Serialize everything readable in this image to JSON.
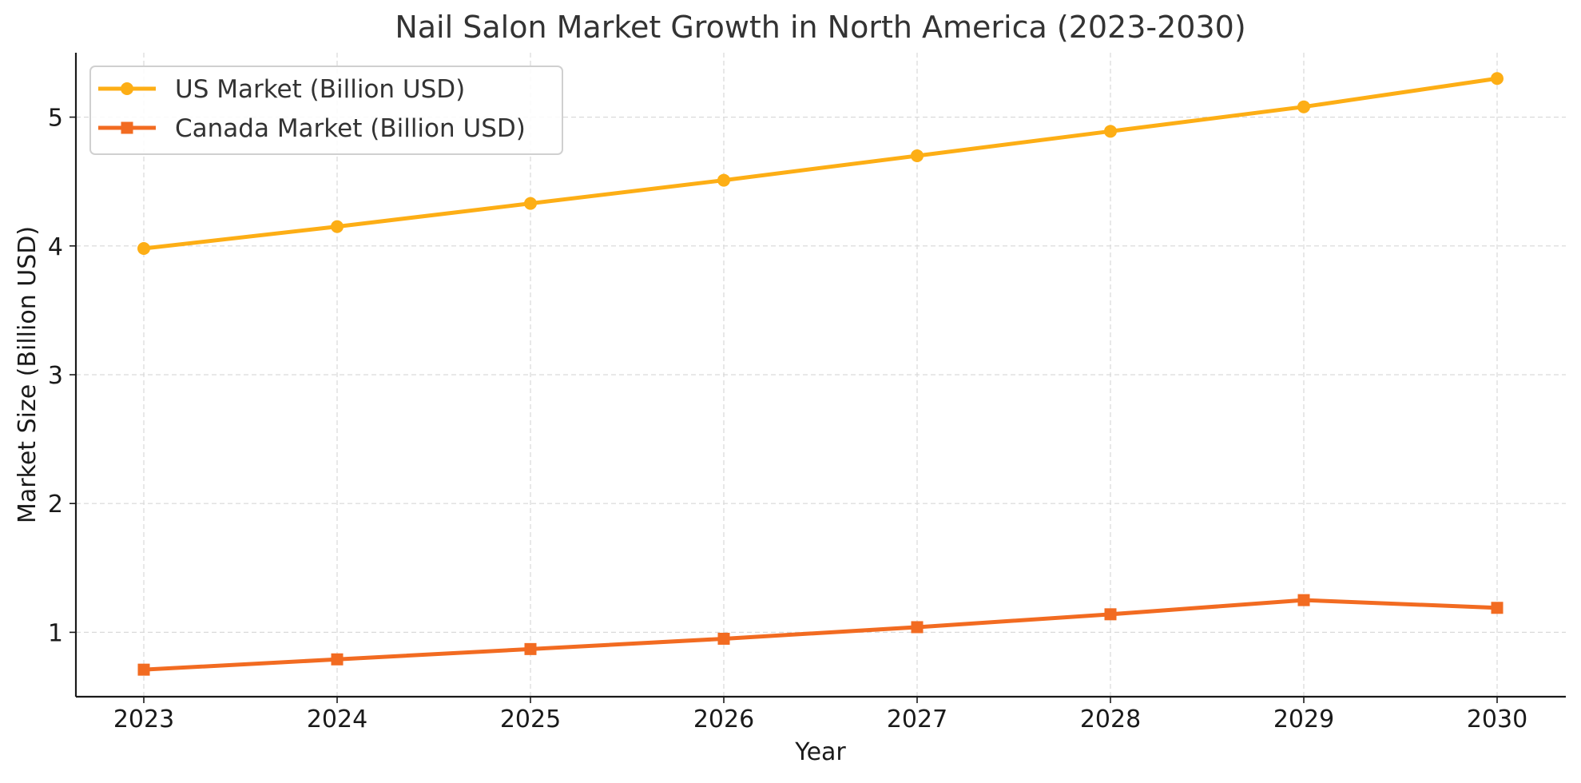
{
  "chart_data": {
    "type": "line",
    "title": "Nail Salon Market Growth in North America (2023-2030)",
    "xlabel": "Year",
    "ylabel": "Market Size (Billion USD)",
    "categories": [
      "2023",
      "2024",
      "2025",
      "2026",
      "2027",
      "2028",
      "2029",
      "2030"
    ],
    "y_ticks": [
      "1",
      "2",
      "3",
      "4",
      "5"
    ],
    "ylim": [
      0.5,
      5.5
    ],
    "grid": true,
    "legend_position": "top-left",
    "series": [
      {
        "name": "US Market (Billion USD)",
        "values": [
          3.98,
          4.15,
          4.33,
          4.51,
          4.7,
          4.89,
          5.08,
          5.3
        ],
        "color": "#FDAE15",
        "marker": "circle"
      },
      {
        "name": "Canada Market (Billion USD)",
        "values": [
          0.71,
          0.79,
          0.87,
          0.95,
          1.04,
          1.14,
          1.25,
          1.19
        ],
        "color": "#F26B21",
        "marker": "square"
      }
    ]
  }
}
